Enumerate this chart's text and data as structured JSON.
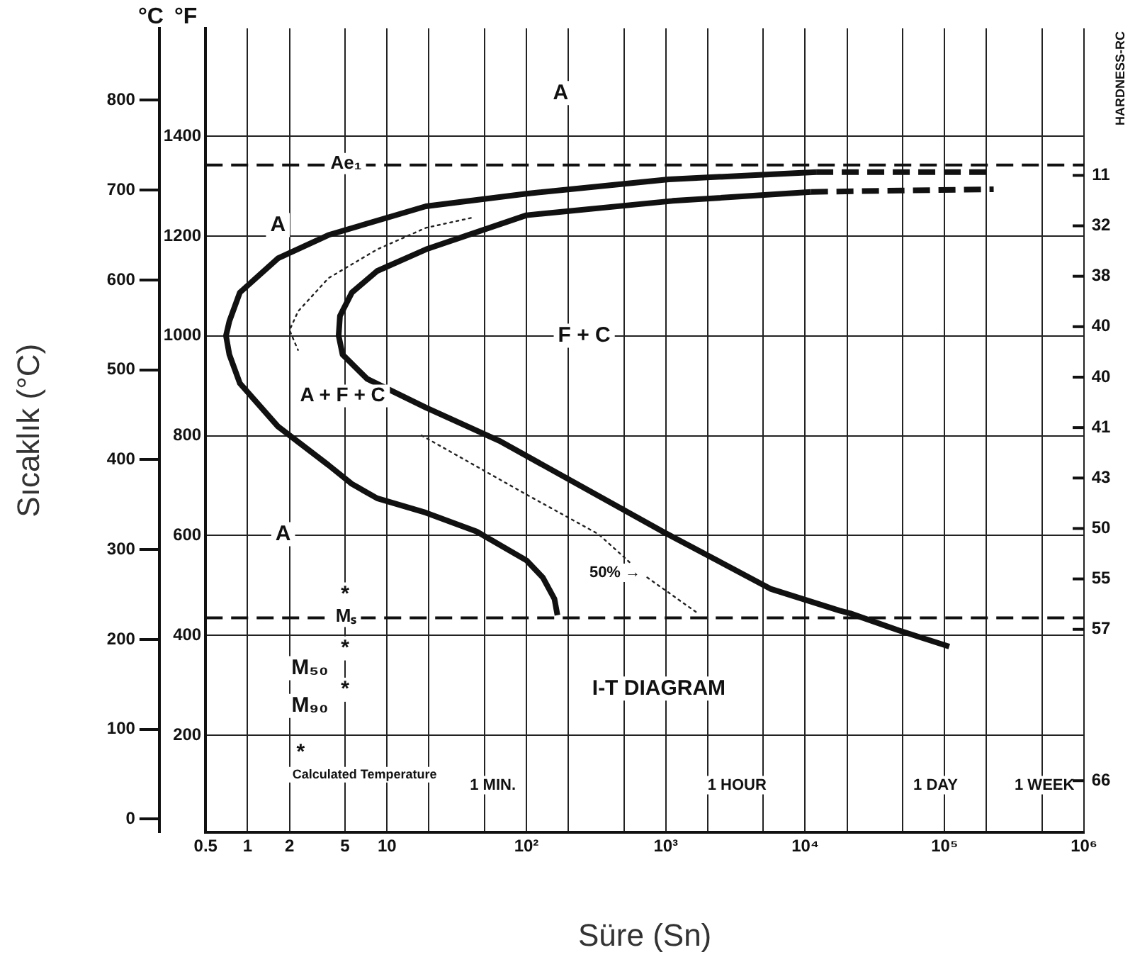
{
  "chart_data": {
    "type": "line",
    "xlabel": "Süre (Sn)",
    "ylabel": "Sıcaklık (°C)",
    "y2label": "°F",
    "y3label": "HARDNESS-RC",
    "log": "x",
    "grid": true,
    "legend": false,
    "marker": "none",
    "xlim": [
      0.5,
      1000000
    ],
    "xticks": [
      0.5,
      1,
      2,
      5,
      10,
      {
        "value": 20,
        "label": null
      },
      {
        "value": 50,
        "label": null
      },
      {
        "value": 100,
        "label": "10²"
      },
      {
        "value": 200,
        "label": null
      },
      {
        "value": 500,
        "label": null
      },
      {
        "value": 1000,
        "label": "10³"
      },
      {
        "value": 2000,
        "label": null
      },
      {
        "value": 5000,
        "label": null
      },
      {
        "value": 10000,
        "label": "10⁴"
      },
      {
        "value": 20000,
        "label": null
      },
      {
        "value": 50000,
        "label": null
      },
      {
        "value": 100000,
        "label": "10⁵"
      },
      {
        "value": 200000,
        "label": null
      },
      {
        "value": 500000,
        "label": null
      },
      {
        "value": 1000000,
        "label": "10⁶"
      }
    ],
    "ylim": [
      -15,
      880
    ],
    "yticks": [
      0,
      100,
      200,
      300,
      400,
      500,
      600,
      700,
      800
    ],
    "y2lim": [
      5,
      1616
    ],
    "y2ticks": [
      200,
      400,
      600,
      800,
      1000,
      1200,
      1400
    ],
    "series": [
      {
        "type": "line",
        "line_style": "solid",
        "color": "#111111",
        "x": [
          12000,
          1050,
          100,
          19,
          3.8,
          1.65,
          0.88,
          0.74,
          0.7,
          0.74,
          0.88,
          1.65,
          3.8,
          5.6,
          8.5,
          19,
          44,
          100,
          131,
          159,
          167
        ],
        "values": [
          720,
          712,
          696,
          682,
          650,
          624,
          586,
          554,
          538,
          517,
          485,
          437,
          394,
          373,
          357,
          341,
          320,
          288,
          269,
          245,
          227
        ]
      },
      {
        "type": "line",
        "line_style": "dashed",
        "color": "#111111",
        "x": [
          12000,
          220000
        ],
        "values": [
          720,
          720
        ]
      },
      {
        "type": "line",
        "line_style": "solid",
        "color": "#111111",
        "x": [
          11000,
          1120,
          100,
          19,
          8.5,
          5.6,
          4.6,
          4.5,
          4.8,
          7.2,
          19,
          64,
          950,
          5700,
          17700,
          21000,
          47000,
          108000
        ],
        "values": [
          698,
          688,
          672,
          634,
          610,
          586,
          560,
          538,
          517,
          490,
          458,
          421,
          320,
          256,
          232,
          229,
          210,
          192
        ]
      },
      {
        "type": "line",
        "line_style": "dashed",
        "color": "#111111",
        "x": [
          11000,
          225000
        ],
        "values": [
          698,
          701
        ]
      },
      {
        "type": "line",
        "line_style": "dotted",
        "color": "#222222",
        "x": [
          40,
          19,
          8.5,
          3.8,
          2.3,
          2.0,
          2.3
        ],
        "values": [
          669,
          658,
          634,
          602,
          565,
          544,
          522
        ]
      },
      {
        "type": "line",
        "line_style": "dotted",
        "color": "#222222",
        "x": [
          17.7,
          98,
          330,
          690,
          1700
        ],
        "values": [
          427,
          362,
          317,
          272,
          229
        ]
      }
    ],
    "ref_lines": [
      {
        "axis": "y",
        "value": 728,
        "label": "Ae₁",
        "line_style": "dashed"
      },
      {
        "axis": "y",
        "value": 224,
        "label": "Mₛ",
        "line_style": "dashed"
      }
    ],
    "annotations": [
      "°C",
      "A + F + C",
      "Calculated Temperature",
      "50% →",
      "I-T DIAGRAM",
      "1 MIN.",
      "1 HOUR",
      "1 DAY",
      "1 WEEK",
      "11",
      "32",
      "38",
      "40",
      "40",
      "41",
      "43",
      "50",
      "55",
      "57",
      "66",
      {
        "text": "A",
        "x": 176,
        "y": 808
      },
      {
        "text": "A",
        "x": 1.65,
        "y": 661
      },
      {
        "text": "A",
        "x": 1.8,
        "y": 317
      },
      {
        "text": "F + C",
        "x": 260,
        "y": 538
      },
      {
        "text": "M₅₀",
        "x": 2.8,
        "y": 168
      },
      {
        "text": "M₉₀",
        "x": 2.8,
        "y": 126
      },
      {
        "text": "*",
        "x": 5,
        "y": 250
      },
      {
        "text": "*",
        "x": 5,
        "y": 190
      },
      {
        "text": "*",
        "x": 5,
        "y": 144
      },
      {
        "text": "*",
        "x": 2.4,
        "y": 74
      }
    ]
  }
}
